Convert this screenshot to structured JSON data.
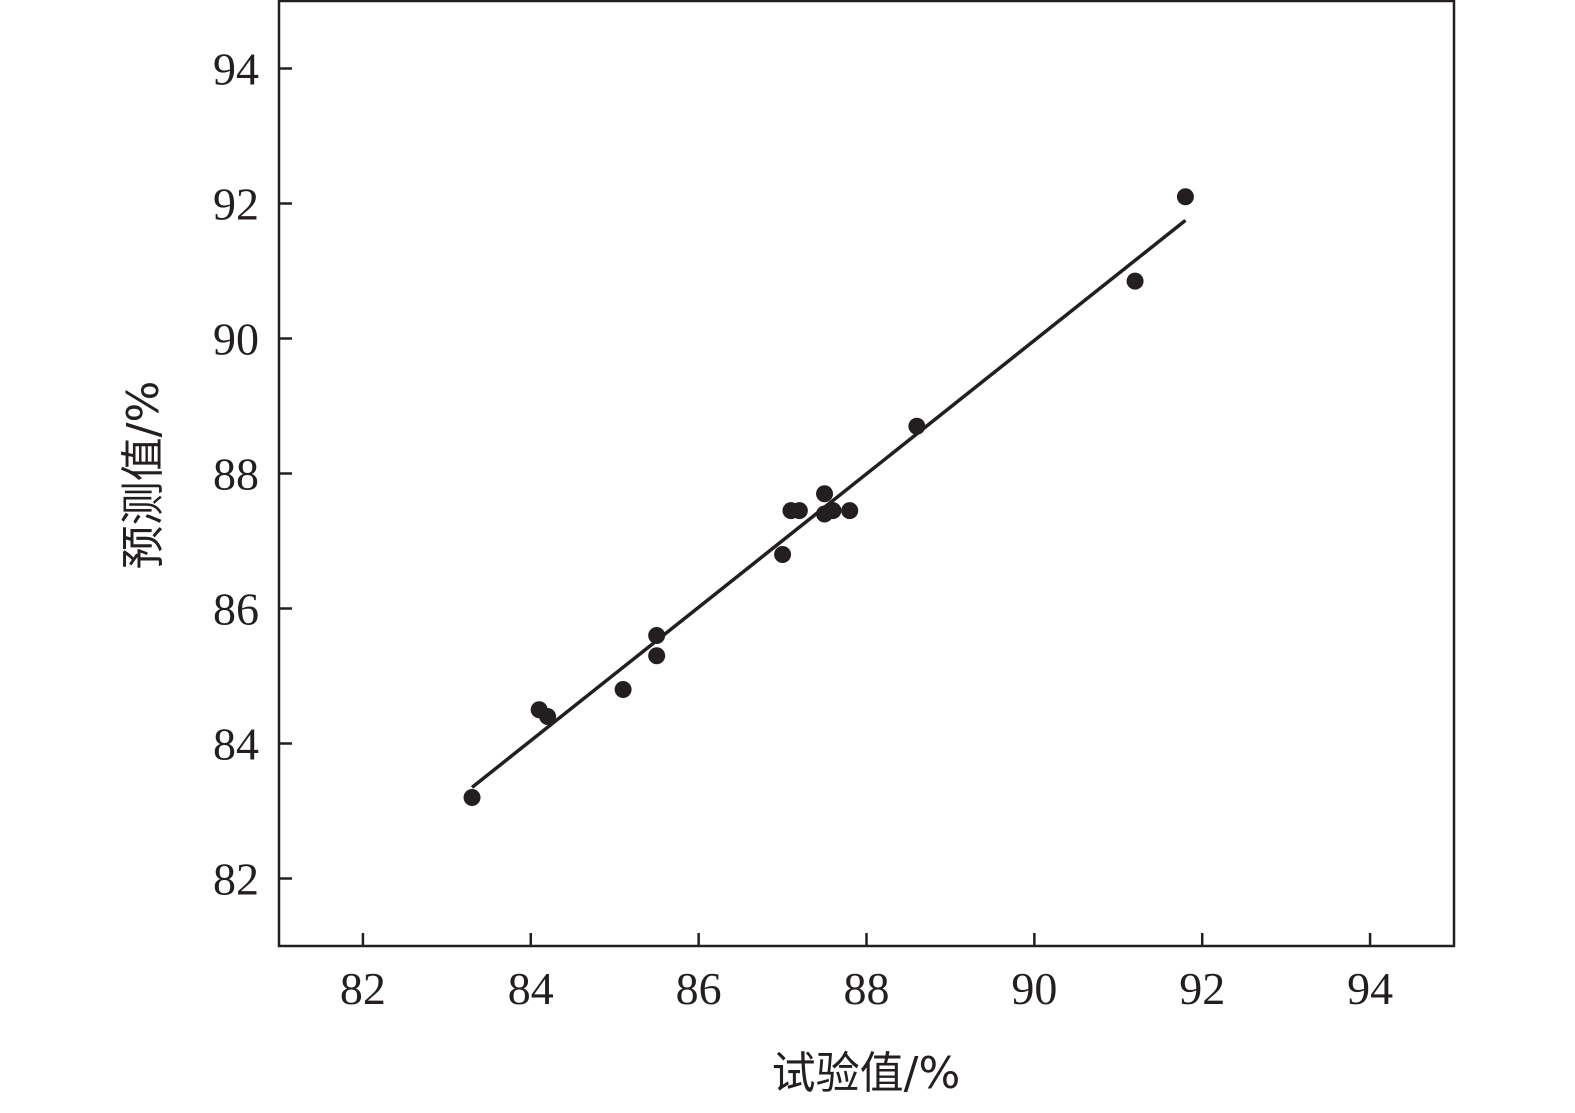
{
  "chart_data": {
    "type": "scatter",
    "title": "",
    "xlabel": "试验值/%",
    "ylabel": "预测值/%",
    "xlim": [
      81,
      95
    ],
    "ylim": [
      81,
      95
    ],
    "xticks": [
      82,
      84,
      86,
      88,
      90,
      92,
      94
    ],
    "yticks": [
      82,
      84,
      86,
      88,
      90,
      92,
      94
    ],
    "grid": false,
    "legend": "none",
    "series": [
      {
        "points": [
          {
            "x": 83.3,
            "y": 83.2
          },
          {
            "x": 84.1,
            "y": 84.5
          },
          {
            "x": 84.2,
            "y": 84.4
          },
          {
            "x": 85.1,
            "y": 84.8
          },
          {
            "x": 85.5,
            "y": 85.6
          },
          {
            "x": 85.5,
            "y": 85.3
          },
          {
            "x": 87.0,
            "y": 86.8
          },
          {
            "x": 87.1,
            "y": 87.45
          },
          {
            "x": 87.2,
            "y": 87.45
          },
          {
            "x": 87.5,
            "y": 87.7
          },
          {
            "x": 87.5,
            "y": 87.4
          },
          {
            "x": 87.6,
            "y": 87.45
          },
          {
            "x": 87.8,
            "y": 87.45
          },
          {
            "x": 88.6,
            "y": 88.7
          },
          {
            "x": 91.2,
            "y": 90.85
          },
          {
            "x": 91.8,
            "y": 92.1
          }
        ],
        "color": "#231f20"
      }
    ],
    "fit_line": {
      "x": [
        83.3,
        91.8
      ],
      "y": [
        83.35,
        91.75
      ],
      "color": "#231f20"
    }
  }
}
